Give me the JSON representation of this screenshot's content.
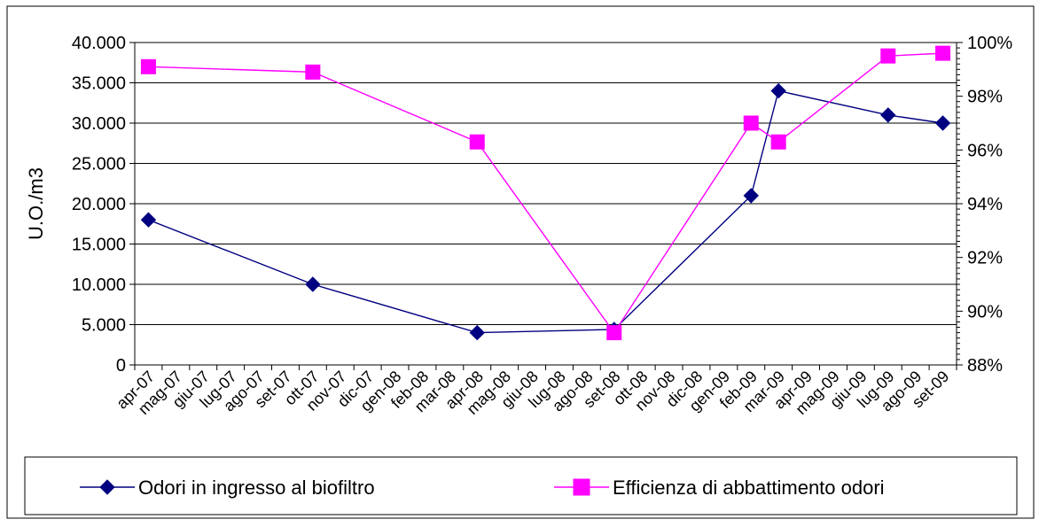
{
  "chart_data": {
    "type": "line",
    "title": "",
    "xlabel": "",
    "ylabel": "U.O./m3",
    "y2label": "",
    "categories": [
      "apr-07",
      "mag-07",
      "giu-07",
      "lug-07",
      "ago-07",
      "set-07",
      "ott-07",
      "nov-07",
      "dic-07",
      "gen-08",
      "feb-08",
      "mar-08",
      "apr-08",
      "mag-08",
      "giu-08",
      "lug-08",
      "ago-08",
      "set-08",
      "ott-08",
      "nov-08",
      "dic-08",
      "gen-09",
      "feb-09",
      "mar-09",
      "apr-09",
      "mag-09",
      "giu-09",
      "lug-09",
      "ago-09",
      "set-09"
    ],
    "ylim": [
      0,
      40000
    ],
    "yticks": [
      "0",
      "5.000",
      "10.000",
      "15.000",
      "20.000",
      "25.000",
      "30.000",
      "35.000",
      "40.000"
    ],
    "y2lim": [
      88,
      100
    ],
    "y2ticks": [
      "88%",
      "90%",
      "92%",
      "94%",
      "96%",
      "98%",
      "100%"
    ],
    "grid": "horizontal",
    "legend_position": "bottom",
    "series": [
      {
        "name": "Odori in ingresso al biofiltro",
        "axis": "left",
        "color": "#000080",
        "marker": "diamond",
        "points": [
          {
            "x": "apr-07",
            "y": 18000
          },
          {
            "x": "ott-07",
            "y": 10000
          },
          {
            "x": "apr-08",
            "y": 4000
          },
          {
            "x": "set-08",
            "y": 4400
          },
          {
            "x": "feb-09",
            "y": 21000
          },
          {
            "x": "mar-09",
            "y": 34000
          },
          {
            "x": "lug-09",
            "y": 31000
          },
          {
            "x": "set-09",
            "y": 30000
          }
        ]
      },
      {
        "name": "Efficienza di abbattimento odori",
        "axis": "right",
        "color": "#ff00ff",
        "marker": "square",
        "points": [
          {
            "x": "apr-07",
            "y": 99.1
          },
          {
            "x": "ott-07",
            "y": 98.9
          },
          {
            "x": "apr-08",
            "y": 96.3
          },
          {
            "x": "set-08",
            "y": 89.2
          },
          {
            "x": "feb-09",
            "y": 97.0
          },
          {
            "x": "mar-09",
            "y": 96.3
          },
          {
            "x": "lug-09",
            "y": 99.5
          },
          {
            "x": "set-09",
            "y": 99.6
          }
        ]
      }
    ]
  }
}
